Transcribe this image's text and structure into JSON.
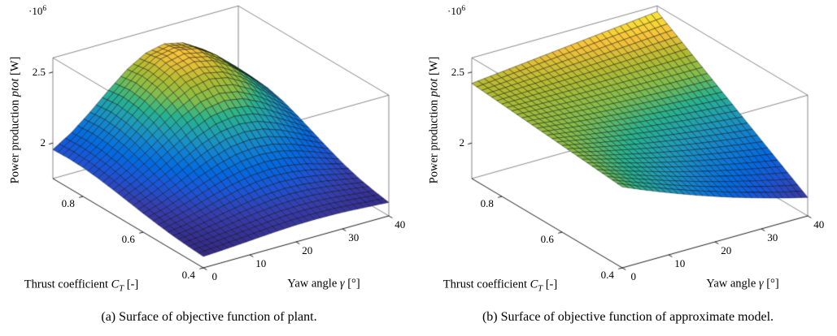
{
  "figure": {
    "caption_a": "(a) Surface of objective function of plant.",
    "caption_b": "(b) Surface of objective function of approximate model."
  },
  "color_range": [
    1.83,
    2.56
  ],
  "colormap": {
    "name": "parula",
    "stops": [
      [
        0.0,
        53,
        42,
        135
      ],
      [
        0.1,
        54,
        61,
        173
      ],
      [
        0.2,
        27,
        85,
        215
      ],
      [
        0.3,
        2,
        106,
        225
      ],
      [
        0.4,
        17,
        129,
        210
      ],
      [
        0.5,
        30,
        156,
        184
      ],
      [
        0.6,
        40,
        179,
        141
      ],
      [
        0.7,
        129,
        189,
        76
      ],
      [
        0.8,
        178,
        187,
        49
      ],
      [
        0.9,
        247,
        193,
        58
      ],
      [
        1.0,
        249,
        234,
        52
      ]
    ]
  },
  "chart_data": [
    {
      "type": "surface",
      "name": "plant-objective-surface",
      "xlabel": {
        "prefix": "Yaw angle ",
        "var": "γ",
        "suffix": " [°]"
      },
      "ylabel": {
        "prefix": "Thrust coefficient ",
        "var": "C",
        "sub": "T",
        "suffix": " [-]"
      },
      "zlabel": {
        "prefix": "Power production ",
        "var": "ptot",
        "suffix": " [W]"
      },
      "z_exponent": {
        "base": "·10",
        "exp": "6"
      },
      "xlim": [
        0,
        40
      ],
      "ylim": [
        0.4,
        0.9
      ],
      "zlim_ticks": [
        2,
        2.5
      ],
      "xticks": [
        0,
        10,
        20,
        30,
        40
      ],
      "yticks": [
        0.4,
        0.6,
        0.8
      ],
      "zticks": [
        2,
        2.5
      ],
      "x_yaw_deg": [
        0,
        4,
        8,
        12,
        16,
        20,
        24,
        28,
        32,
        36,
        40
      ],
      "y_thrust_coeff": [
        0.4,
        0.45,
        0.5,
        0.55,
        0.6,
        0.65,
        0.7,
        0.75,
        0.8,
        0.85,
        0.9
      ],
      "z_unit_W": 1000000,
      "z": [
        [
          1.83,
          1.837,
          1.845,
          1.854,
          1.863,
          1.869,
          1.871,
          1.869,
          1.863,
          1.854,
          1.845
        ],
        [
          1.838,
          1.849,
          1.864,
          1.879,
          1.894,
          1.905,
          1.908,
          1.905,
          1.894,
          1.879,
          1.864
        ],
        [
          1.849,
          1.867,
          1.89,
          1.916,
          1.939,
          1.956,
          1.963,
          1.956,
          1.939,
          1.916,
          1.89
        ],
        [
          1.864,
          1.891,
          1.926,
          1.965,
          2.001,
          2.026,
          2.036,
          2.026,
          2.001,
          1.965,
          1.926
        ],
        [
          1.882,
          1.921,
          1.971,
          2.026,
          2.077,
          2.113,
          2.126,
          2.113,
          2.077,
          2.026,
          1.971
        ],
        [
          1.903,
          1.955,
          2.021,
          2.094,
          2.162,
          2.211,
          2.228,
          2.211,
          2.162,
          2.094,
          2.021
        ],
        [
          1.923,
          1.988,
          2.071,
          2.162,
          2.247,
          2.308,
          2.33,
          2.308,
          2.247,
          2.162,
          2.071
        ],
        [
          1.941,
          2.018,
          2.115,
          2.222,
          2.321,
          2.393,
          2.419,
          2.393,
          2.321,
          2.222,
          2.115
        ],
        [
          1.954,
          2.037,
          2.144,
          2.262,
          2.372,
          2.45,
          2.479,
          2.45,
          2.372,
          2.262,
          2.144
        ],
        [
          1.958,
          2.045,
          2.155,
          2.276,
          2.389,
          2.471,
          2.5,
          2.471,
          2.389,
          2.276,
          2.155
        ],
        [
          1.954,
          2.037,
          2.144,
          2.262,
          2.372,
          2.45,
          2.479,
          2.45,
          2.372,
          2.262,
          2.144
        ]
      ]
    },
    {
      "type": "surface",
      "name": "approximate-model-objective-surface",
      "xlabel": {
        "prefix": "Yaw angle ",
        "var": "γ",
        "suffix": " [°]"
      },
      "ylabel": {
        "prefix": "Thrust coefficient ",
        "var": "C",
        "sub": "T",
        "suffix": " [-]"
      },
      "zlabel": {
        "prefix": "Power production ",
        "var": "ptot",
        "suffix": " [W]"
      },
      "z_exponent": {
        "base": "·10",
        "exp": "6"
      },
      "xlim": [
        0,
        40
      ],
      "ylim": [
        0.4,
        0.9
      ],
      "zlim_ticks": [
        2,
        2.5
      ],
      "xticks": [
        0,
        10,
        20,
        30,
        40
      ],
      "yticks": [
        0.4,
        0.6,
        0.8
      ],
      "zticks": [
        2,
        2.5
      ],
      "x_yaw_deg": [
        0,
        4,
        8,
        12,
        16,
        20,
        24,
        28,
        32,
        36,
        40
      ],
      "y_thrust_coeff": [
        0.4,
        0.45,
        0.5,
        0.55,
        0.6,
        0.65,
        0.7,
        0.75,
        0.8,
        0.85,
        0.9
      ],
      "z_unit_W": 1000000,
      "z": [
        [
          2.32,
          2.265,
          2.213,
          2.163,
          2.115,
          2.07,
          2.027,
          1.987,
          1.949,
          1.913,
          1.88
        ],
        [
          2.33,
          2.282,
          2.237,
          2.193,
          2.151,
          2.112,
          2.075,
          2.04,
          2.007,
          1.976,
          1.948
        ],
        [
          2.34,
          2.299,
          2.26,
          2.223,
          2.187,
          2.154,
          2.122,
          2.093,
          2.066,
          2.04,
          2.016
        ],
        [
          2.35,
          2.316,
          2.284,
          2.253,
          2.223,
          2.196,
          2.17,
          2.146,
          2.124,
          2.103,
          2.084
        ],
        [
          2.36,
          2.333,
          2.307,
          2.283,
          2.259,
          2.238,
          2.218,
          2.199,
          2.182,
          2.166,
          2.152
        ],
        [
          2.37,
          2.35,
          2.331,
          2.313,
          2.296,
          2.28,
          2.266,
          2.253,
          2.241,
          2.23,
          2.22
        ],
        [
          2.38,
          2.366,
          2.354,
          2.342,
          2.332,
          2.322,
          2.313,
          2.306,
          2.299,
          2.293,
          2.288
        ],
        [
          2.39,
          2.383,
          2.378,
          2.372,
          2.368,
          2.364,
          2.361,
          2.359,
          2.357,
          2.356,
          2.356
        ],
        [
          2.4,
          2.4,
          2.401,
          2.402,
          2.404,
          2.406,
          2.409,
          2.412,
          2.415,
          2.419,
          2.424
        ],
        [
          2.41,
          2.417,
          2.425,
          2.432,
          2.44,
          2.448,
          2.456,
          2.465,
          2.474,
          2.483,
          2.492
        ],
        [
          2.42,
          2.434,
          2.448,
          2.462,
          2.476,
          2.49,
          2.504,
          2.518,
          2.532,
          2.546,
          2.56
        ]
      ]
    }
  ]
}
